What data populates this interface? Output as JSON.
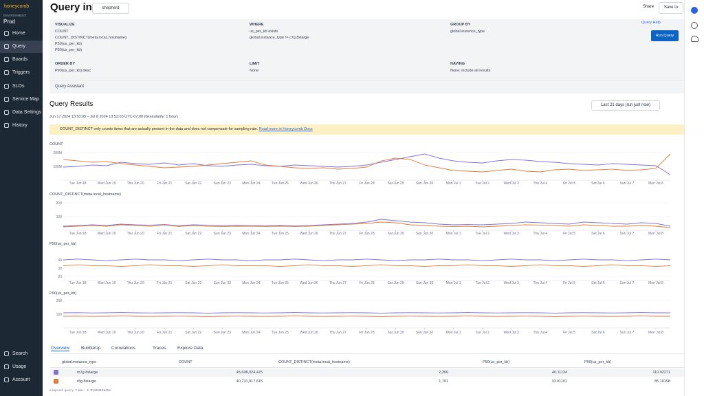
{
  "sidebar": {
    "logo": "honeycomb",
    "env_label": "ENVIRONMENT",
    "env": "Prod",
    "nav": [
      "Home",
      "Query",
      "Boards",
      "Triggers",
      "SLOs",
      "Service Map",
      "Data Settings",
      "History"
    ],
    "bottom": [
      "Search",
      "Usage",
      "Account"
    ]
  },
  "header": {
    "title": "Query in",
    "dataset": "shepherd",
    "share": "Share",
    "save": "Save to"
  },
  "query": {
    "visualize": {
      "label": "VISUALIZE",
      "items": [
        "COUNT",
        "COUNT_DISTINCT(meta.local_hostname)",
        "P50(us_per_kb)",
        "P90(us_per_kb)"
      ]
    },
    "where": {
      "label": "WHERE",
      "items": [
        "us_per_kb exists",
        "global.instance_type != c7g.8xlarge"
      ]
    },
    "group_by": {
      "label": "GROUP BY",
      "items": [
        "global.instance_type"
      ]
    },
    "order_by": {
      "label": "ORDER BY",
      "items": [
        "P90(us_per_kb) desc"
      ]
    },
    "limit": {
      "label": "LIMIT",
      "items": [
        "None"
      ]
    },
    "having": {
      "label": "HAVING",
      "items": [
        "None; include all results"
      ]
    },
    "help": "Query Help",
    "run": "Run Query",
    "assistant": "Query Assistant"
  },
  "results": {
    "title": "Query Results",
    "range": "Jun 17 2024 13:53:03 – Jul 8 2024 13:53:03 UTC-07:00 (Granularity: 1 hour)",
    "time_picker": "Last 21 days (run just now)",
    "banner": "COUNT_DISTINCT only counts items that are actually present in the data and does not compensate for sampling rate.",
    "banner_link": "Read more in Honeycomb Docs"
  },
  "chart_data": [
    {
      "type": "line",
      "title": "COUNT",
      "categories": [
        null,
        "Tue Jun 18",
        null,
        "Wed Jun 19",
        null,
        "Thu Jun 20",
        null,
        "Fri Jun 21",
        null,
        "Sat Jun 22",
        null,
        "Sun Jun 23",
        null,
        "Mon Jun 24",
        null,
        "Tue Jun 25",
        null,
        "Wed Jun 26",
        null,
        "Thu Jun 27",
        null,
        "Fri Jun 28",
        null,
        "Sat Jun 29",
        null,
        "Sun Jun 30",
        null,
        "Mon Jul 1",
        null,
        "Tue Jul 2",
        null,
        "Wed Jul 3",
        null,
        "Thu Jul 4",
        null,
        "Fri Jul 5",
        null,
        "Sat Jul 6",
        null,
        "Sun Jul 7",
        null,
        "Mon Jul 8",
        null
      ],
      "series": [
        {
          "color": "#7f72d4",
          "values": [
            95000000.0,
            100000000.0,
            110000000.0,
            105000000.0,
            130000000.0,
            120000000.0,
            115000000.0,
            125000000.0,
            110000000.0,
            120000000.0,
            105000000.0,
            100000000.0,
            110000000.0,
            115000000.0,
            105000000.0,
            100000000.0,
            110000000.0,
            105000000.0,
            100000000.0,
            95000000.0,
            100000000.0,
            110000000.0,
            130000000.0,
            150000000.0,
            170000000.0,
            190000000.0,
            160000000.0,
            140000000.0,
            130000000.0,
            125000000.0,
            140000000.0,
            150000000.0,
            145000000.0,
            135000000.0,
            130000000.0,
            120000000.0,
            115000000.0,
            110000000.0,
            120000000.0,
            115000000.0,
            110000000.0,
            105000000.0,
            40000000.0
          ]
        },
        {
          "color": "#e07b39",
          "values": [
            150000000.0,
            140000000.0,
            130000000.0,
            135000000.0,
            120000000.0,
            110000000.0,
            100000000.0,
            90000000.0,
            95000000.0,
            100000000.0,
            110000000.0,
            120000000.0,
            130000000.0,
            140000000.0,
            110000000.0,
            100000000.0,
            90000000.0,
            85000000.0,
            90000000.0,
            80000000.0,
            85000000.0,
            95000000.0,
            140000000.0,
            160000000.0,
            150000000.0,
            110000000.0,
            90000000.0,
            70000000.0,
            65000000.0,
            60000000.0,
            70000000.0,
            80000000.0,
            65000000.0,
            60000000.0,
            75000000.0,
            80000000.0,
            70000000.0,
            75000000.0,
            80000000.0,
            70000000.0,
            75000000.0,
            85000000.0,
            190000000.0
          ]
        }
      ],
      "ylim": [
        0,
        200000000.0
      ],
      "yticks": [
        {
          "value": 100000000.0,
          "label": "100M"
        },
        {
          "value": 200000000.0,
          "label": "200M"
        }
      ],
      "grid": true
    },
    {
      "type": "line",
      "title": "COUNT_DISTINCT(meta.local_hostname)",
      "categories": [
        null,
        "Tue Jun 18",
        null,
        "Wed Jun 19",
        null,
        "Thu Jun 20",
        null,
        "Fri Jun 21",
        null,
        "Sat Jun 22",
        null,
        "Sun Jun 23",
        null,
        "Mon Jun 24",
        null,
        "Tue Jun 25",
        null,
        "Wed Jun 26",
        null,
        "Thu Jun 27",
        null,
        "Fri Jun 28",
        null,
        "Sat Jun 29",
        null,
        "Sun Jun 30",
        null,
        "Mon Jul 1",
        null,
        "Tue Jul 2",
        null,
        "Wed Jul 3",
        null,
        "Thu Jul 4",
        null,
        "Fri Jul 5",
        null,
        "Sat Jul 6",
        null,
        "Sun Jul 7",
        null,
        "Mon Jul 8",
        null
      ],
      "series": [
        {
          "color": "#7f72d4",
          "values": [
            30,
            35,
            40,
            35,
            45,
            40,
            38,
            42,
            35,
            40,
            38,
            35,
            37,
            36,
            34,
            35,
            33,
            36,
            40,
            45,
            50,
            60,
            80,
            70,
            60,
            55,
            45,
            40,
            42,
            40,
            45,
            50,
            60,
            55,
            50,
            45,
            60,
            55,
            50,
            45,
            55,
            50,
            30
          ]
        },
        {
          "color": "#e07b39",
          "values": [
            25,
            30,
            35,
            30,
            40,
            35,
            30,
            38,
            28,
            35,
            30,
            28,
            30,
            29,
            28,
            30,
            28,
            30,
            35,
            40,
            45,
            50,
            60,
            55,
            40,
            35,
            30,
            28,
            30,
            25,
            30,
            35,
            40,
            38,
            35,
            30,
            40,
            35,
            30,
            30,
            35,
            30,
            20
          ]
        }
      ],
      "ylim": [
        0,
        200
      ],
      "yticks": [
        100,
        200
      ],
      "grid": true
    },
    {
      "type": "line",
      "title": "P50(us_per_kb)",
      "categories": [
        null,
        "Tue Jun 18",
        null,
        "Wed Jun 19",
        null,
        "Thu Jun 20",
        null,
        "Fri Jun 21",
        null,
        "Sat Jun 22",
        null,
        "Sun Jun 23",
        null,
        "Mon Jun 24",
        null,
        "Tue Jun 25",
        null,
        "Wed Jun 26",
        null,
        "Thu Jun 27",
        null,
        "Fri Jun 28",
        null,
        "Sat Jun 29",
        null,
        "Sun Jun 30",
        null,
        "Mon Jul 1",
        null,
        "Tue Jul 2",
        null,
        "Wed Jul 3",
        null,
        "Thu Jul 4",
        null,
        "Fri Jul 5",
        null,
        "Sat Jul 6",
        null,
        "Sun Jul 7",
        null,
        "Mon Jul 8",
        null
      ],
      "series": [
        {
          "color": "#7f72d4",
          "values": [
            40,
            41,
            40,
            39,
            40,
            41,
            40,
            40,
            39,
            40,
            41,
            40,
            40,
            39,
            40,
            40,
            41,
            40,
            39,
            40,
            40,
            41,
            40,
            39,
            40,
            40,
            41,
            40,
            40,
            39,
            40,
            41,
            40,
            40,
            39,
            40,
            41,
            40,
            40,
            39,
            40,
            41,
            40
          ]
        },
        {
          "color": "#e07b39",
          "values": [
            33,
            34,
            33,
            33,
            32,
            33,
            34,
            33,
            33,
            32,
            33,
            34,
            33,
            33,
            33,
            32,
            33,
            34,
            33,
            33,
            32,
            33,
            34,
            33,
            33,
            32,
            33,
            33,
            34,
            33,
            33,
            32,
            33,
            34,
            33,
            33,
            32,
            33,
            34,
            33,
            33,
            32,
            33
          ]
        }
      ],
      "ylim": [
        15,
        45
      ],
      "yticks": [
        20,
        30,
        40
      ],
      "grid": true
    },
    {
      "type": "line",
      "title": "P90(us_per_kb)",
      "categories": [
        null,
        "Tue Jun 18",
        null,
        "Wed Jun 19",
        null,
        "Thu Jun 20",
        null,
        "Fri Jun 21",
        null,
        "Sat Jun 22",
        null,
        "Sun Jun 23",
        null,
        "Mon Jun 24",
        null,
        "Tue Jun 25",
        null,
        "Wed Jun 26",
        null,
        "Thu Jun 27",
        null,
        "Fri Jun 28",
        null,
        "Sat Jun 29",
        null,
        "Sun Jun 30",
        null,
        "Mon Jul 1",
        null,
        "Tue Jul 2",
        null,
        "Wed Jul 3",
        null,
        "Thu Jul 4",
        null,
        "Fri Jul 5",
        null,
        "Sat Jul 6",
        null,
        "Sun Jul 7",
        null,
        "Mon Jul 8",
        null
      ],
      "series": [
        {
          "color": "#7f72d4",
          "values": [
            110,
            111,
            109,
            110,
            112,
            110,
            109,
            110,
            111,
            110,
            108,
            110,
            111,
            110,
            109,
            110,
            112,
            110,
            109,
            110,
            111,
            110,
            108,
            110,
            111,
            110,
            109,
            110,
            112,
            110,
            109,
            110,
            111,
            110,
            108,
            110,
            111,
            110,
            109,
            110,
            112,
            110,
            110
          ]
        },
        {
          "color": "#e07b39",
          "values": [
            85,
            86,
            84,
            85,
            87,
            85,
            84,
            85,
            86,
            85,
            83,
            85,
            86,
            85,
            84,
            85,
            87,
            85,
            84,
            85,
            86,
            85,
            83,
            85,
            86,
            85,
            84,
            85,
            87,
            85,
            84,
            85,
            86,
            85,
            83,
            85,
            86,
            85,
            84,
            85,
            87,
            85,
            85
          ]
        }
      ],
      "ylim": [
        0,
        200
      ],
      "yticks": [
        100,
        200
      ],
      "grid": true
    }
  ],
  "tabs": [
    "Overview",
    "BubbleUp",
    "Correlations",
    "Traces",
    "Explore Data"
  ],
  "table": {
    "columns": [
      "global.instance_type",
      "COUNT",
      "COUNT_DISTINCT(meta.local_hostname)",
      "P50(us_per_kb)",
      "P90(us_per_kb)"
    ],
    "rows": [
      [
        "m7g.8xlarge",
        "45,698,024,475",
        "2,356",
        "40.11134",
        "110.02271"
      ],
      [
        "r8g.8xlarge",
        "40,731,917,615",
        "1,701",
        "33.01101",
        "85.10198"
      ]
    ]
  },
  "footer": "elapsed query time: 0.0120385945s"
}
